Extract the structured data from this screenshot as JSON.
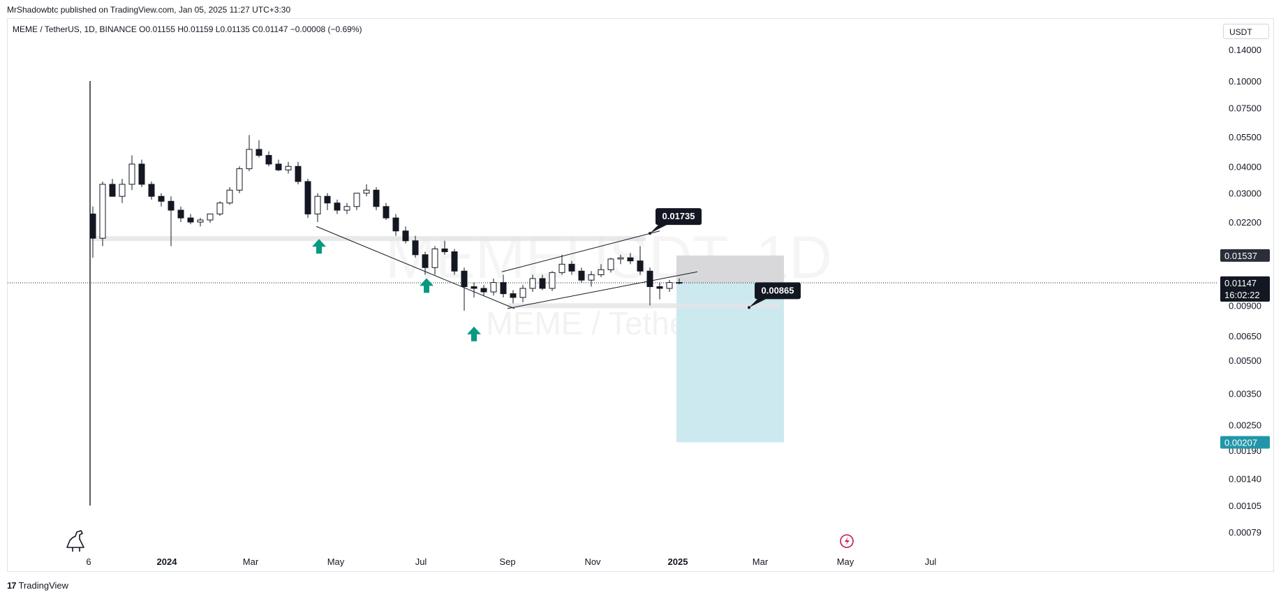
{
  "header": {
    "published_note": "MrShadowbtc published on TradingView.com, Jan 05, 2025 11:27 UTC+3:30"
  },
  "symbol_bar": {
    "text": "MEME / TetherUS, 1D, BINANCE  O0.01155  H0.01159  L0.01135  C0.01147  −0.00008 (−0.69%)"
  },
  "watermark": {
    "ticker": "MEMEUSDT, 1D",
    "name": "MEME / TetherUS"
  },
  "unit_button": "USDT",
  "footer": {
    "brand_mark": "17",
    "brand": "TradingView"
  },
  "colors": {
    "candle": "#131722",
    "arrow": "#089981",
    "target_zone": "#c9e8ee",
    "stop_zone": "#d6d6d9",
    "current_price_bg": "#131722",
    "target_price_bg": "#2196a8",
    "stop_price_bg": "#2a2e39"
  },
  "chart_data": {
    "type": "candlestick",
    "title": "MEME / TetherUS, 1D, BINANCE",
    "xlabel": "",
    "ylabel": "",
    "y_scale": "log",
    "x_ticks": [
      "6",
      "2024",
      "Mar",
      "May",
      "Jul",
      "Sep",
      "Nov",
      "2025",
      "Mar",
      "May",
      "Jul"
    ],
    "y_ticks": [
      "0.14000",
      "0.10000",
      "0.07500",
      "0.05500",
      "0.04000",
      "0.03000",
      "0.02200",
      "0.01537",
      "0.01151",
      "0.01147",
      "0.00900",
      "0.00650",
      "0.00500",
      "0.00350",
      "0.00250",
      "0.00190",
      "0.00140",
      "0.00105",
      "0.00079"
    ],
    "x_range": [
      "2023-11-03",
      "2025-08-01"
    ],
    "ylim": [
      0.00075,
      0.15
    ],
    "series": [
      {
        "name": "MEME / TetherUS",
        "x": [
          "2023-11-06",
          "2023-11-13",
          "2023-11-20",
          "2023-11-27",
          "2023-12-04",
          "2023-12-11",
          "2023-12-18",
          "2023-12-25",
          "2024-01-01",
          "2024-01-08",
          "2024-01-15",
          "2024-01-22",
          "2024-01-29",
          "2024-02-05",
          "2024-02-12",
          "2024-02-19",
          "2024-02-26",
          "2024-03-04",
          "2024-03-11",
          "2024-03-18",
          "2024-03-25",
          "2024-04-01",
          "2024-04-08",
          "2024-04-15",
          "2024-04-22",
          "2024-04-29",
          "2024-05-06",
          "2024-05-13",
          "2024-05-20",
          "2024-05-27",
          "2024-06-03",
          "2024-06-10",
          "2024-06-17",
          "2024-06-24",
          "2024-07-01",
          "2024-07-08",
          "2024-07-15",
          "2024-07-22",
          "2024-07-29",
          "2024-08-05",
          "2024-08-12",
          "2024-08-19",
          "2024-08-26",
          "2024-09-02",
          "2024-09-09",
          "2024-09-16",
          "2024-09-23",
          "2024-09-30",
          "2024-10-07",
          "2024-10-14",
          "2024-10-21",
          "2024-10-28",
          "2024-11-04",
          "2024-11-11",
          "2024-11-18",
          "2024-11-25",
          "2024-12-02",
          "2024-12-09",
          "2024-12-16",
          "2024-12-23",
          "2024-12-30"
        ],
        "open": [
          0.024,
          0.0185,
          0.033,
          0.029,
          0.033,
          0.041,
          0.033,
          0.029,
          0.0275,
          0.025,
          0.023,
          0.022,
          0.0225,
          0.024,
          0.027,
          0.031,
          0.039,
          0.048,
          0.045,
          0.041,
          0.0385,
          0.04,
          0.034,
          0.024,
          0.029,
          0.027,
          0.025,
          0.026,
          0.03,
          0.031,
          0.026,
          0.023,
          0.02,
          0.018,
          0.0155,
          0.0135,
          0.0165,
          0.016,
          0.013,
          0.011,
          0.0108,
          0.0104,
          0.0115,
          0.0102,
          0.0098,
          0.0108,
          0.012,
          0.0108,
          0.0128,
          0.014,
          0.013,
          0.0118,
          0.0125,
          0.0132,
          0.0148,
          0.015,
          0.0145,
          0.013,
          0.011,
          0.0108,
          0.0115
        ],
        "high": [
          0.026,
          0.034,
          0.035,
          0.035,
          0.045,
          0.043,
          0.034,
          0.03,
          0.029,
          0.026,
          0.024,
          0.023,
          0.024,
          0.0275,
          0.032,
          0.04,
          0.056,
          0.053,
          0.047,
          0.043,
          0.042,
          0.042,
          0.035,
          0.03,
          0.03,
          0.028,
          0.027,
          0.03,
          0.033,
          0.032,
          0.027,
          0.024,
          0.021,
          0.019,
          0.016,
          0.017,
          0.018,
          0.0165,
          0.0135,
          0.0115,
          0.0112,
          0.012,
          0.0125,
          0.0106,
          0.0112,
          0.0125,
          0.0125,
          0.013,
          0.0155,
          0.0145,
          0.0135,
          0.013,
          0.014,
          0.015,
          0.0155,
          0.0158,
          0.017,
          0.0135,
          0.0115,
          0.0118,
          0.012
        ],
        "low": [
          0.015,
          0.017,
          0.029,
          0.027,
          0.031,
          0.032,
          0.028,
          0.026,
          0.017,
          0.022,
          0.0215,
          0.021,
          0.0218,
          0.0235,
          0.0265,
          0.03,
          0.038,
          0.044,
          0.04,
          0.038,
          0.037,
          0.033,
          0.023,
          0.022,
          0.025,
          0.024,
          0.024,
          0.025,
          0.029,
          0.025,
          0.0225,
          0.019,
          0.0175,
          0.015,
          0.0125,
          0.0125,
          0.0155,
          0.0125,
          0.0085,
          0.0098,
          0.01,
          0.01,
          0.0098,
          0.0092,
          0.0093,
          0.0104,
          0.0106,
          0.0105,
          0.0125,
          0.0125,
          0.0115,
          0.011,
          0.0122,
          0.0128,
          0.014,
          0.014,
          0.0125,
          0.009,
          0.0096,
          0.0104,
          0.0113
        ],
        "close": [
          0.0185,
          0.033,
          0.029,
          0.033,
          0.041,
          0.033,
          0.029,
          0.0275,
          0.025,
          0.023,
          0.022,
          0.0225,
          0.024,
          0.027,
          0.031,
          0.039,
          0.048,
          0.045,
          0.041,
          0.0385,
          0.04,
          0.034,
          0.024,
          0.029,
          0.027,
          0.025,
          0.026,
          0.03,
          0.031,
          0.026,
          0.023,
          0.02,
          0.018,
          0.0155,
          0.0135,
          0.0165,
          0.016,
          0.013,
          0.011,
          0.0108,
          0.0104,
          0.0115,
          0.0102,
          0.0098,
          0.0108,
          0.012,
          0.0108,
          0.0128,
          0.014,
          0.013,
          0.0118,
          0.0125,
          0.0132,
          0.0148,
          0.015,
          0.0145,
          0.013,
          0.011,
          0.0108,
          0.0115,
          0.01147
        ]
      }
    ],
    "early_spike": {
      "x": "2023-11-04",
      "high": 0.1,
      "low": 0.00105
    },
    "drawings": {
      "descending_trendline": {
        "from": [
          "2024-04-17",
          0.021
        ],
        "to": [
          "2024-09-06",
          0.0087
        ]
      },
      "channel_upper": {
        "from": [
          "2024-08-28",
          0.0129
        ],
        "to": [
          "2024-12-19",
          0.02
        ]
      },
      "channel_lower": {
        "from": [
          "2024-09-01",
          0.0087
        ],
        "to": [
          "2025-01-15",
          0.0129
        ]
      },
      "support_band_upper": {
        "from": "2023-11-08",
        "to": "2024-12-09",
        "y": 0.0185
      },
      "support_band_lower": {
        "from": "2024-09-01",
        "to": "2025-03-15",
        "y": 0.009
      },
      "current_price_line": 0.01147,
      "buy_arrows": [
        [
          "2024-04-19",
          0.0169
        ],
        [
          "2024-07-05",
          0.0111
        ],
        [
          "2024-08-08",
          0.0066
        ]
      ],
      "short_position": {
        "x_from": "2024-12-31",
        "x_to": "2025-03-18",
        "entry": 0.01151,
        "stop": 0.01537,
        "target": 0.00207
      },
      "callouts": [
        {
          "label": "0.01735",
          "x": "2024-12-12",
          "y": 0.0195
        },
        {
          "label": "0.00865",
          "x": "2025-02-21",
          "y": 0.0088
        }
      ]
    },
    "price_labels": {
      "stop": "0.01537",
      "entry": "0.01151",
      "current": "0.01147",
      "countdown": "16:02:22",
      "target": "0.00207"
    },
    "grid": false,
    "legend": "none"
  }
}
